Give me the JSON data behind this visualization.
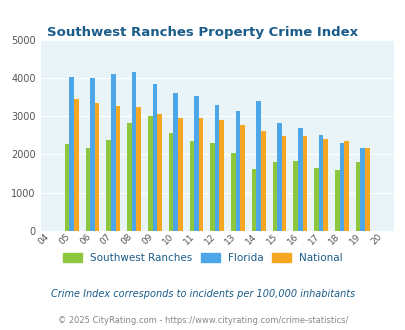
{
  "title": "Southwest Ranches Property Crime Index",
  "all_years": [
    2004,
    2005,
    2006,
    2007,
    2008,
    2009,
    2010,
    2011,
    2012,
    2013,
    2014,
    2015,
    2016,
    2017,
    2018,
    2019,
    2020
  ],
  "bar_years": [
    2005,
    2006,
    2007,
    2008,
    2009,
    2010,
    2011,
    2012,
    2013,
    2014,
    2015,
    2016,
    2017,
    2018,
    2019
  ],
  "southwest_ranches": [
    2270,
    2170,
    2370,
    2820,
    3000,
    2560,
    2340,
    2290,
    2030,
    1630,
    1790,
    1840,
    1640,
    1590,
    1810
  ],
  "florida": [
    4020,
    4000,
    4100,
    4150,
    3850,
    3600,
    3520,
    3300,
    3140,
    3400,
    2820,
    2700,
    2520,
    2300,
    2160
  ],
  "national": [
    3450,
    3350,
    3270,
    3240,
    3060,
    2960,
    2950,
    2910,
    2760,
    2620,
    2490,
    2470,
    2400,
    2360,
    2160
  ],
  "color_sw": "#8dc63f",
  "color_fl": "#4da6e8",
  "color_nat": "#f5a623",
  "ylim": [
    0,
    5000
  ],
  "yticks": [
    0,
    1000,
    2000,
    3000,
    4000,
    5000
  ],
  "bg_color": "#e8f4f8",
  "subtitle": "Crime Index corresponds to incidents per 100,000 inhabitants",
  "footer": "© 2025 CityRating.com - https://www.cityrating.com/crime-statistics/",
  "title_color": "#1a5c8a",
  "subtitle_color": "#1a5c8a",
  "footer_color": "#888888",
  "grid_color": "#ffffff"
}
